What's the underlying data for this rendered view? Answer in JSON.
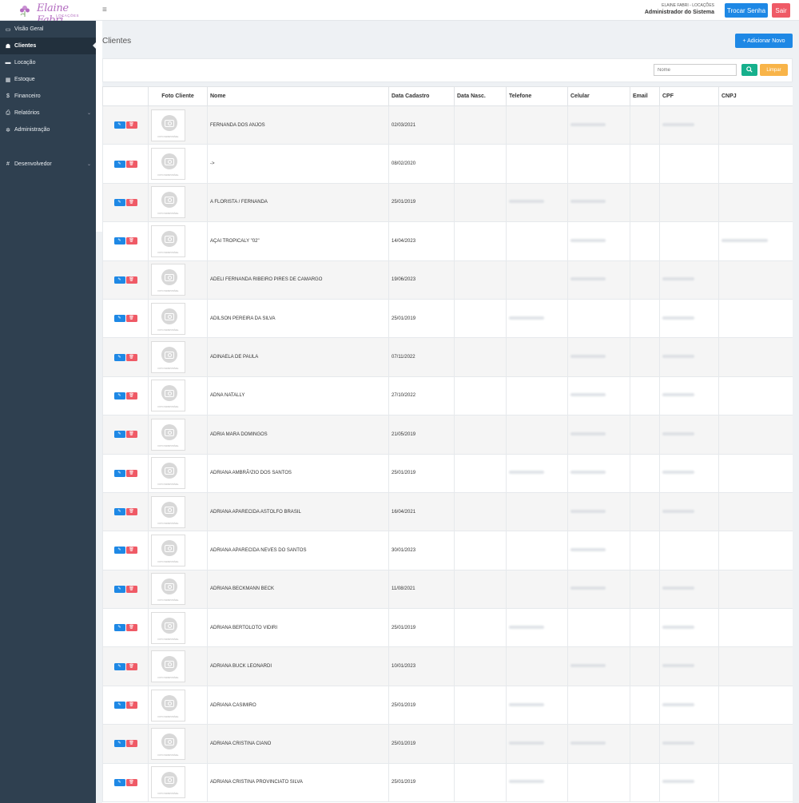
{
  "header": {
    "logo_script": "Elaine Fabri",
    "logo_sub": "LOCAÇÕES",
    "company": "ELAINE FABRI - LOCAÇÕES",
    "role": "Administrador do Sistema",
    "change_password": "Trocar Senha",
    "logout": "Sair"
  },
  "sidebar": {
    "items": [
      {
        "label": "Visão Geral",
        "icon": "monitor-icon",
        "glyph": "▭"
      },
      {
        "label": "Clientes",
        "icon": "users-icon",
        "glyph": "👥"
      },
      {
        "label": "Locação",
        "icon": "card-icon",
        "glyph": "▬"
      },
      {
        "label": "Estoque",
        "icon": "grid-icon",
        "glyph": "▦"
      },
      {
        "label": "Financeiro",
        "icon": "dollar-icon",
        "glyph": "$"
      },
      {
        "label": "Relatórios",
        "icon": "print-icon",
        "glyph": "⎙"
      },
      {
        "label": "Administração",
        "icon": "gear-icon",
        "glyph": "✲"
      },
      {
        "label": "Desenvolvedor",
        "icon": "hash-icon",
        "glyph": "#"
      }
    ]
  },
  "main": {
    "title": "Clientes",
    "add_button": "+ Adicionar Novo",
    "filter_placeholder": "Nome",
    "clear_button": "Limpar",
    "photo_caption": "FOTO INDISPONÍVEL"
  },
  "table": {
    "columns": [
      "",
      "Foto Cliente",
      "Nome",
      "Data Cadastro",
      "Data Nasc.",
      "Telefone",
      "Celular",
      "Email",
      "CPF",
      "CNPJ"
    ],
    "rows": [
      {
        "nome": "FERNANDA DOS ANJOS",
        "data": "02/03/2021",
        "tel": false,
        "cel": true,
        "cpf": true,
        "cnpj": false
      },
      {
        "nome": "->",
        "data": "08/02/2020",
        "tel": false,
        "cel": false,
        "cpf": false,
        "cnpj": false
      },
      {
        "nome": "A FLORISTA / FERNANDA",
        "data": "25/01/2019",
        "tel": true,
        "cel": true,
        "cpf": false,
        "cnpj": false
      },
      {
        "nome": "AÇAI TROPICALY \"02\"",
        "data": "14/04/2023",
        "tel": false,
        "cel": true,
        "cpf": false,
        "cnpj": true
      },
      {
        "nome": "ADELI FERNANDA RIBEIRO PIRES DE CAMARGO",
        "data": "19/06/2023",
        "tel": false,
        "cel": true,
        "cpf": true,
        "cnpj": false
      },
      {
        "nome": "ADILSON PEREIRA DA SILVA",
        "data": "25/01/2019",
        "tel": true,
        "cel": false,
        "cpf": true,
        "cnpj": false
      },
      {
        "nome": "ADINAELA DE PAULA",
        "data": "07/11/2022",
        "tel": false,
        "cel": true,
        "cpf": true,
        "cnpj": false
      },
      {
        "nome": "ADNA NATALLY",
        "data": "27/10/2022",
        "tel": false,
        "cel": true,
        "cpf": true,
        "cnpj": false
      },
      {
        "nome": "ADRIA MARA DOMINGOS",
        "data": "21/05/2019",
        "tel": false,
        "cel": true,
        "cpf": true,
        "cnpj": false
      },
      {
        "nome": "ADRIANA AMBRÃ³ZIO DOS SANTOS",
        "data": "25/01/2019",
        "tel": true,
        "cel": true,
        "cpf": true,
        "cnpj": false
      },
      {
        "nome": "ADRIANA APARECIDA ASTOLFO BRASIL",
        "data": "16/04/2021",
        "tel": false,
        "cel": true,
        "cpf": true,
        "cnpj": false
      },
      {
        "nome": "ADRIANA APARECIDA NEVES DO SANTOS",
        "data": "30/01/2023",
        "tel": false,
        "cel": true,
        "cpf": false,
        "cnpj": false
      },
      {
        "nome": "ADRIANA BECKMANN BECK",
        "data": "11/08/2021",
        "tel": false,
        "cel": true,
        "cpf": true,
        "cnpj": false
      },
      {
        "nome": "ADRIANA BERTOLOTO VIDIRI",
        "data": "25/01/2019",
        "tel": true,
        "cel": false,
        "cpf": true,
        "cnpj": false
      },
      {
        "nome": "ADRIANA BUCK LEONARDI",
        "data": "10/01/2023",
        "tel": false,
        "cel": true,
        "cpf": true,
        "cnpj": false
      },
      {
        "nome": "ADRIANA CASIMIRO",
        "data": "25/01/2019",
        "tel": true,
        "cel": false,
        "cpf": true,
        "cnpj": false
      },
      {
        "nome": "ADRIANA CRISTINA CIANO",
        "data": "25/01/2019",
        "tel": true,
        "cel": true,
        "cpf": true,
        "cnpj": false
      },
      {
        "nome": "ADRIANA CRISTINA PROVINCIATO SILVA",
        "data": "25/01/2019",
        "tel": true,
        "cel": false,
        "cpf": true,
        "cnpj": false
      }
    ]
  }
}
